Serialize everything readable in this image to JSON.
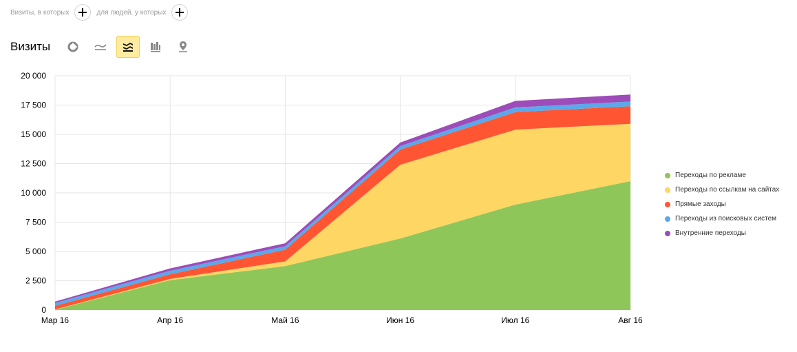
{
  "filters": {
    "segment_label": "Визиты, в которых",
    "users_label": "для людей, у которых"
  },
  "header": {
    "title": "Визиты",
    "views": [
      {
        "name": "pie-view",
        "icon": "pie-chart-icon",
        "active": false
      },
      {
        "name": "line-view",
        "icon": "line-chart-icon",
        "active": false
      },
      {
        "name": "area-view",
        "icon": "area-chart-icon",
        "active": true
      },
      {
        "name": "bar-view",
        "icon": "bar-chart-icon",
        "active": false
      },
      {
        "name": "map-view",
        "icon": "map-pin-icon",
        "active": false
      }
    ]
  },
  "chart_data": {
    "type": "area",
    "stacked": true,
    "title": "Визиты",
    "categories": [
      "Мар 16",
      "Апр 16",
      "Май 16",
      "Июн 16",
      "Июл 16",
      "Авг 16"
    ],
    "ylim": [
      0,
      20000
    ],
    "yticks": [
      {
        "value": 0,
        "label": "0"
      },
      {
        "value": 2500,
        "label": "2 500"
      },
      {
        "value": 5000,
        "label": "5 000"
      },
      {
        "value": 7500,
        "label": "7 500"
      },
      {
        "value": 10000,
        "label": "10 000"
      },
      {
        "value": 12500,
        "label": "12 500"
      },
      {
        "value": 15000,
        "label": "15 000"
      },
      {
        "value": 17500,
        "label": "17 500"
      },
      {
        "value": 20000,
        "label": "20 000"
      }
    ],
    "grid": true,
    "legend_position": "right",
    "series": [
      {
        "name": "Переходы по рекламе",
        "color": "#8fc65a",
        "values": [
          30,
          2550,
          3750,
          6100,
          9000,
          11000
        ]
      },
      {
        "name": "Переходы по ссылкам на сайтах",
        "color": "#fdd663",
        "values": [
          20,
          100,
          400,
          6300,
          6400,
          4900
        ]
      },
      {
        "name": "Прямые заходы",
        "color": "#ff5533",
        "values": [
          300,
          400,
          1000,
          1300,
          1500,
          1500
        ]
      },
      {
        "name": "Переходы из поисковых систем",
        "color": "#5ba8ea",
        "values": [
          250,
          300,
          300,
          300,
          400,
          400
        ]
      },
      {
        "name": "Внутренние переходы",
        "color": "#9d4cb8",
        "values": [
          120,
          200,
          250,
          300,
          550,
          600
        ]
      }
    ]
  }
}
